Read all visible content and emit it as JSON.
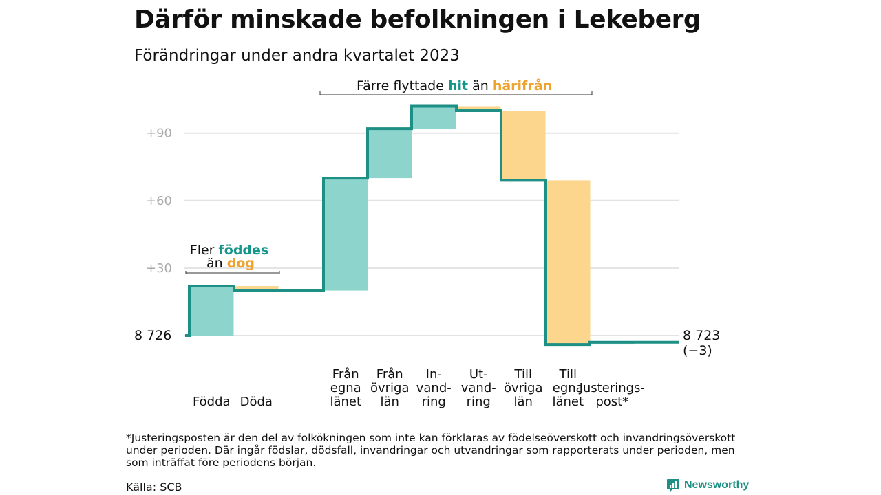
{
  "title": "Därför minskade befolkningen i Lekeberg",
  "subtitle": "Förändringar under andra kvartalet 2023",
  "colors": {
    "in": "#8dd5cc",
    "out": "#fbd68c",
    "line": "#1d8f84",
    "teal_text": "#16968a",
    "orange_text": "#f0a22e",
    "grid": "#e3e3e3",
    "tick": "#aaaaaa"
  },
  "chart_data": {
    "type": "waterfall",
    "start_label": "8  726",
    "end_label": "8 723",
    "end_change": "(−3)",
    "start_value": 0,
    "ylim": [
      -3,
      103
    ],
    "yticks": [
      {
        "value": 30,
        "label": "+30"
      },
      {
        "value": 60,
        "label": "+60"
      },
      {
        "value": 90,
        "label": "+90"
      }
    ],
    "steps": [
      {
        "label": [
          "Födda"
        ],
        "change": 22,
        "kind": "in"
      },
      {
        "label": [
          "Döda"
        ],
        "change": -2,
        "kind": "out"
      },
      {
        "label": [
          "Från",
          "egna",
          "länet"
        ],
        "change": 50,
        "kind": "in"
      },
      {
        "label": [
          "Från",
          "övriga",
          "län"
        ],
        "change": 22,
        "kind": "in"
      },
      {
        "label": [
          "In-",
          "vand-",
          "ring"
        ],
        "change": 10,
        "kind": "in"
      },
      {
        "label": [
          "Ut-",
          "vand-",
          "ring"
        ],
        "change": -2,
        "kind": "out"
      },
      {
        "label": [
          "Till",
          "övriga",
          "län"
        ],
        "change": -31,
        "kind": "out"
      },
      {
        "label": [
          "Till",
          "egna",
          "länet"
        ],
        "change": -73,
        "kind": "out"
      },
      {
        "label": [
          "Justerings-",
          "post*"
        ],
        "change": 1,
        "kind": "in"
      }
    ],
    "annotations": {
      "births": {
        "l1_pre": "Fler ",
        "l1_hl": "föddes",
        "l2_pre": "än ",
        "l2_hl": "dog"
      },
      "migration": {
        "pre": "Färre flyttade ",
        "hl1": "hit",
        "mid": " än ",
        "hl2": "härifrån"
      }
    }
  },
  "footnote": "*Justeringsposten är den del av folkökningen som inte kan förklaras av födelseöverskott och invandringsöverskott under perioden. Där ingår födslar, dödsfall, invandringar och utvandringar som rapporterats under perioden, men som inträffat före periodens början.",
  "source": "Källa: SCB",
  "brand": {
    "name": "Newsworthy",
    "icon": "newsworthy-logo-icon"
  }
}
